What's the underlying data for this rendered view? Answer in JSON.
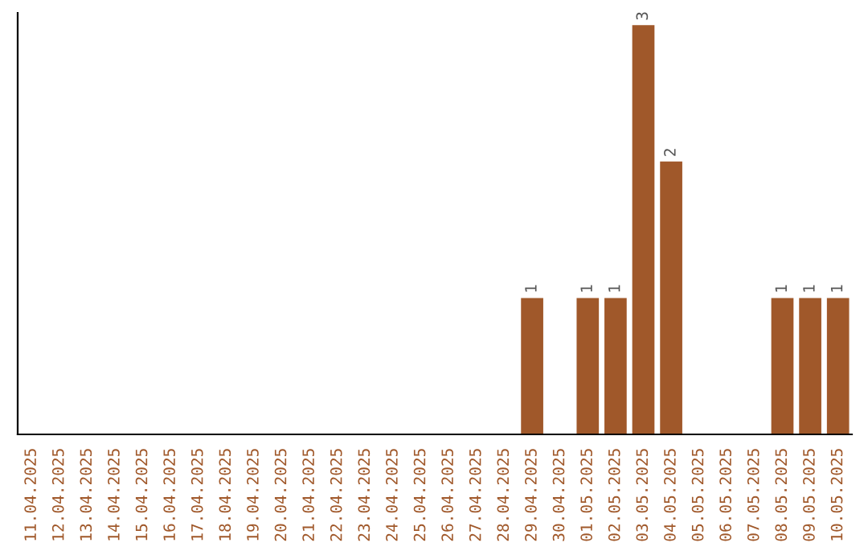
{
  "chart_data": {
    "type": "bar",
    "categories": [
      "11.04.2025",
      "12.04.2025",
      "13.04.2025",
      "14.04.2025",
      "15.04.2025",
      "16.04.2025",
      "17.04.2025",
      "18.04.2025",
      "19.04.2025",
      "20.04.2025",
      "21.04.2025",
      "22.04.2025",
      "23.04.2025",
      "24.04.2025",
      "25.04.2025",
      "26.04.2025",
      "27.04.2025",
      "28.04.2025",
      "29.04.2025",
      "30.04.2025",
      "01.05.2025",
      "02.05.2025",
      "03.05.2025",
      "04.05.2025",
      "05.05.2025",
      "06.05.2025",
      "07.05.2025",
      "08.05.2025",
      "09.05.2025",
      "10.05.2025"
    ],
    "values": [
      null,
      null,
      null,
      null,
      null,
      null,
      null,
      null,
      null,
      null,
      null,
      null,
      null,
      null,
      null,
      null,
      null,
      null,
      1,
      null,
      1,
      1,
      3,
      2,
      null,
      null,
      null,
      1,
      1,
      1
    ],
    "data_labels": true,
    "color": "#a0582a",
    "tick_labels": "x",
    "grid": false,
    "legend": false
  }
}
